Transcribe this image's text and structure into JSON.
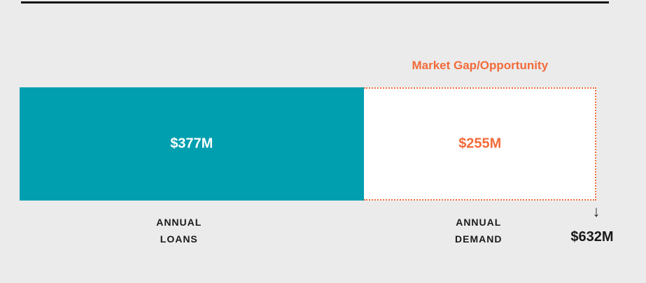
{
  "chart_data": {
    "type": "stacked_bar",
    "orientation": "horizontal",
    "xlim": [
      0,
      632
    ],
    "series": [
      {
        "name": "ANNUAL LOANS",
        "color": "#009fb0",
        "values": [
          377
        ],
        "value_labels": [
          "$377M"
        ],
        "style": "solid"
      },
      {
        "name": "ANNUAL DEMAND",
        "color": "#f26b3a",
        "values": [
          255
        ],
        "value_labels": [
          "$255M"
        ],
        "style": "dotted"
      }
    ],
    "annotation": "Market Gap/Opportunity",
    "total": 632,
    "total_label": "$632M"
  }
}
